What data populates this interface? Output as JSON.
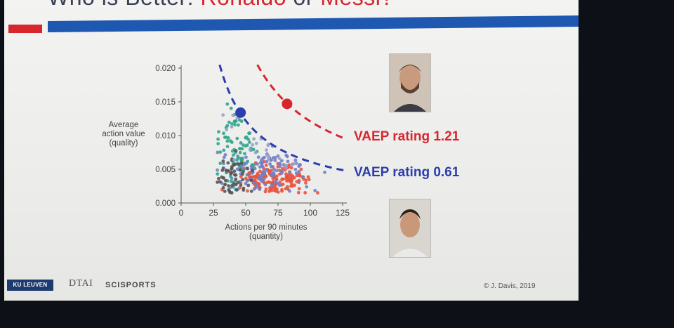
{
  "slide": {
    "title_prefix": "Who is Better: ",
    "title_player1": "Ronaldo",
    "title_or": " or ",
    "title_player2": "Messi?"
  },
  "chart_data": {
    "type": "scatter",
    "xlabel": "Actions per 90 minutes\n(quantity)",
    "ylabel": "Average\naction value\n(quality)",
    "xlim": [
      0,
      125
    ],
    "ylim": [
      0,
      0.02
    ],
    "x_ticks": [
      "0",
      "25",
      "50",
      "75",
      "100",
      "125"
    ],
    "y_ticks": [
      "0.000",
      "0.005",
      "0.010",
      "0.015",
      "0.020"
    ],
    "highlight_points": [
      {
        "x": 82,
        "y": 0.0147,
        "color": "#d8262e"
      },
      {
        "x": 46,
        "y": 0.0134,
        "color": "#2b3db0"
      }
    ],
    "curves": [
      {
        "label": "VAEP rating 1.21",
        "rating": 1.21,
        "color": "#d8262e"
      },
      {
        "label": "VAEP rating 0.61",
        "rating": 0.61,
        "color": "#2b3db0"
      }
    ],
    "cluster_colors": {
      "forwards": "#e8533f",
      "midfield": "#6f7fc8",
      "wingers": "#2fa58a",
      "defense": "#555555",
      "misc": "#9aa0c8"
    }
  },
  "annotations": {
    "messi_rating": "VAEP rating 1.21",
    "ronaldo_rating": "VAEP rating 0.61"
  },
  "footer": {
    "logo_kul": "KU LEUVEN",
    "logo_dtai": "DTAI",
    "logo_sci": "SCISPORTS",
    "copyright": "© J. Davis, 2019"
  },
  "icons": {
    "messi_photo": "player-portrait-icon",
    "ronaldo_photo": "player-portrait-icon"
  }
}
